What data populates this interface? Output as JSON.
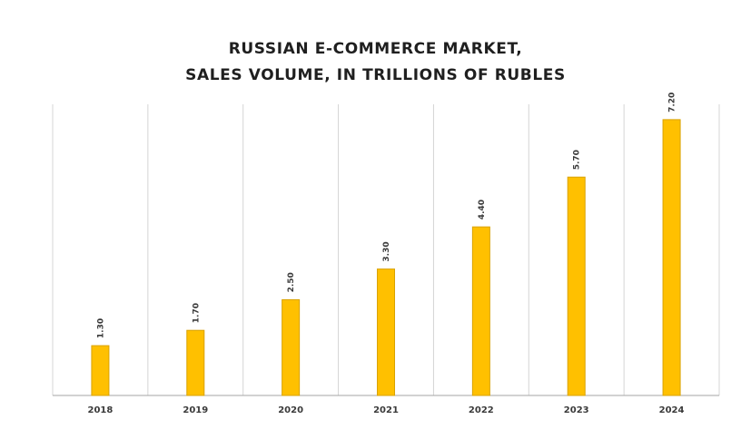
{
  "chart_data": {
    "type": "bar",
    "title_lines": [
      "RUSSIAN E-COMMERCE MARKET,",
      "SALES VOLUME, IN TRILLIONS OF RUBLES"
    ],
    "categories": [
      "2018",
      "2019",
      "2020",
      "2021",
      "2022",
      "2023",
      "2024"
    ],
    "values": [
      1.3,
      1.7,
      2.5,
      3.3,
      4.4,
      5.7,
      7.2
    ],
    "value_labels": [
      "1.30",
      "1.70",
      "2.50",
      "3.30",
      "4.40",
      "5.70",
      "7.20"
    ],
    "xlabel": "",
    "ylabel": "",
    "ylim": [
      0,
      7.6
    ],
    "grid": "vertical",
    "legend": "none",
    "colors": {
      "bar_fill": "#FFC000",
      "bar_stroke": "#D9A200",
      "grid": "#d4d4d4",
      "axis": "#a6a6a6"
    }
  }
}
